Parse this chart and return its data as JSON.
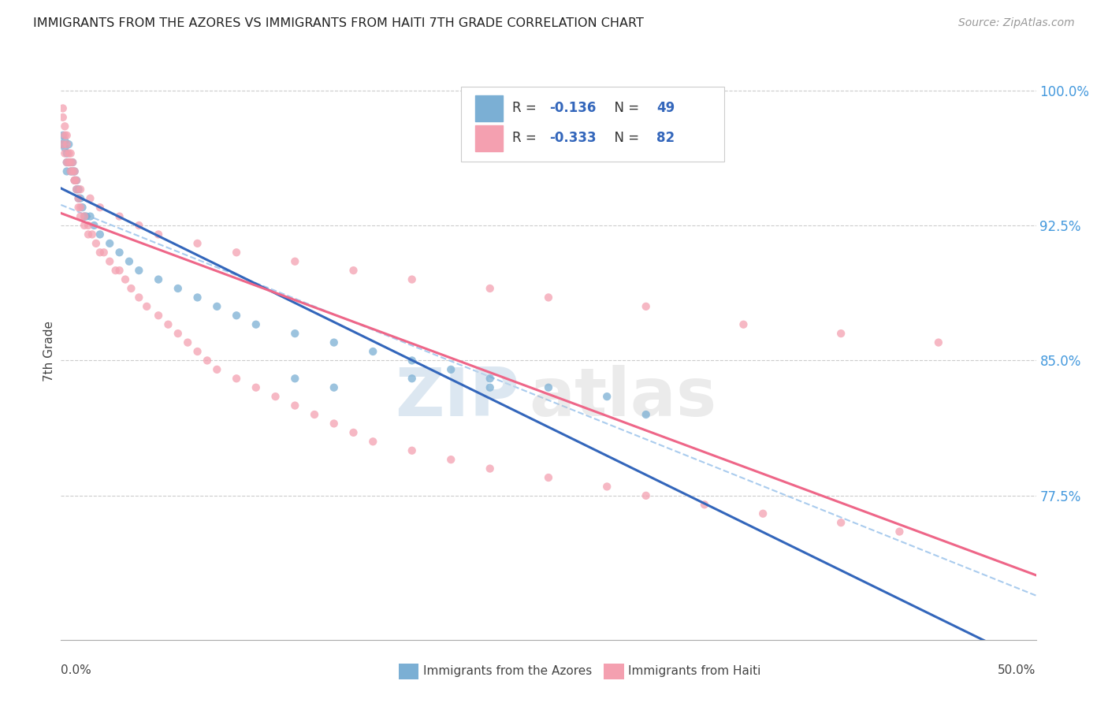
{
  "title": "IMMIGRANTS FROM THE AZORES VS IMMIGRANTS FROM HAITI 7TH GRADE CORRELATION CHART",
  "source": "Source: ZipAtlas.com",
  "ylabel": "7th Grade",
  "color_azores": "#7BAFD4",
  "color_haiti": "#F4A0B0",
  "color_azores_line": "#3366BB",
  "color_haiti_line": "#EE6688",
  "color_dashed": "#AACCEE",
  "watermark_zip": "ZIP",
  "watermark_atlas": "atlas",
  "watermark_color_zip": "#C5D8E8",
  "watermark_color_atlas": "#C8C8C8",
  "background_color": "#FFFFFF",
  "legend_r_azores": "-0.136",
  "legend_n_azores": "49",
  "legend_r_haiti": "-0.333",
  "legend_n_haiti": "82",
  "yaxis_ticks": [
    0.775,
    0.85,
    0.925,
    1.0
  ],
  "yaxis_labels": [
    "77.5%",
    "85.0%",
    "92.5%",
    "100.0%"
  ],
  "xlim": [
    0.0,
    0.5
  ],
  "ylim": [
    0.695,
    1.015
  ],
  "azores_x": [
    0.001,
    0.001,
    0.002,
    0.002,
    0.003,
    0.003,
    0.003,
    0.004,
    0.004,
    0.005,
    0.005,
    0.006,
    0.006,
    0.007,
    0.007,
    0.008,
    0.008,
    0.009,
    0.009,
    0.01,
    0.011,
    0.012,
    0.013,
    0.015,
    0.017,
    0.02,
    0.025,
    0.03,
    0.035,
    0.04,
    0.05,
    0.06,
    0.07,
    0.08,
    0.09,
    0.1,
    0.12,
    0.14,
    0.16,
    0.18,
    0.2,
    0.22,
    0.25,
    0.28,
    0.3,
    0.12,
    0.14,
    0.18,
    0.22
  ],
  "azores_y": [
    0.975,
    0.97,
    0.972,
    0.968,
    0.965,
    0.96,
    0.955,
    0.97,
    0.96,
    0.96,
    0.955,
    0.96,
    0.955,
    0.955,
    0.95,
    0.95,
    0.945,
    0.945,
    0.94,
    0.94,
    0.935,
    0.93,
    0.93,
    0.93,
    0.925,
    0.92,
    0.915,
    0.91,
    0.905,
    0.9,
    0.895,
    0.89,
    0.885,
    0.88,
    0.875,
    0.87,
    0.865,
    0.86,
    0.855,
    0.85,
    0.845,
    0.84,
    0.835,
    0.83,
    0.82,
    0.84,
    0.835,
    0.84,
    0.835
  ],
  "haiti_x": [
    0.001,
    0.001,
    0.002,
    0.002,
    0.003,
    0.003,
    0.004,
    0.004,
    0.005,
    0.005,
    0.006,
    0.006,
    0.007,
    0.007,
    0.008,
    0.008,
    0.009,
    0.009,
    0.01,
    0.01,
    0.012,
    0.012,
    0.014,
    0.014,
    0.016,
    0.018,
    0.02,
    0.022,
    0.025,
    0.028,
    0.03,
    0.033,
    0.036,
    0.04,
    0.044,
    0.05,
    0.055,
    0.06,
    0.065,
    0.07,
    0.075,
    0.08,
    0.09,
    0.1,
    0.11,
    0.12,
    0.13,
    0.14,
    0.15,
    0.16,
    0.18,
    0.2,
    0.22,
    0.25,
    0.28,
    0.3,
    0.33,
    0.36,
    0.4,
    0.43,
    0.001,
    0.002,
    0.003,
    0.005,
    0.007,
    0.01,
    0.015,
    0.02,
    0.03,
    0.04,
    0.05,
    0.07,
    0.09,
    0.12,
    0.15,
    0.18,
    0.22,
    0.25,
    0.3,
    0.35,
    0.4,
    0.45
  ],
  "haiti_y": [
    0.99,
    0.985,
    0.98,
    0.975,
    0.975,
    0.97,
    0.965,
    0.96,
    0.965,
    0.96,
    0.96,
    0.955,
    0.955,
    0.95,
    0.95,
    0.945,
    0.94,
    0.935,
    0.935,
    0.93,
    0.93,
    0.925,
    0.925,
    0.92,
    0.92,
    0.915,
    0.91,
    0.91,
    0.905,
    0.9,
    0.9,
    0.895,
    0.89,
    0.885,
    0.88,
    0.875,
    0.87,
    0.865,
    0.86,
    0.855,
    0.85,
    0.845,
    0.84,
    0.835,
    0.83,
    0.825,
    0.82,
    0.815,
    0.81,
    0.805,
    0.8,
    0.795,
    0.79,
    0.785,
    0.78,
    0.775,
    0.77,
    0.765,
    0.76,
    0.755,
    0.97,
    0.965,
    0.96,
    0.955,
    0.95,
    0.945,
    0.94,
    0.935,
    0.93,
    0.925,
    0.92,
    0.915,
    0.91,
    0.905,
    0.9,
    0.895,
    0.89,
    0.885,
    0.88,
    0.87,
    0.865,
    0.86
  ]
}
